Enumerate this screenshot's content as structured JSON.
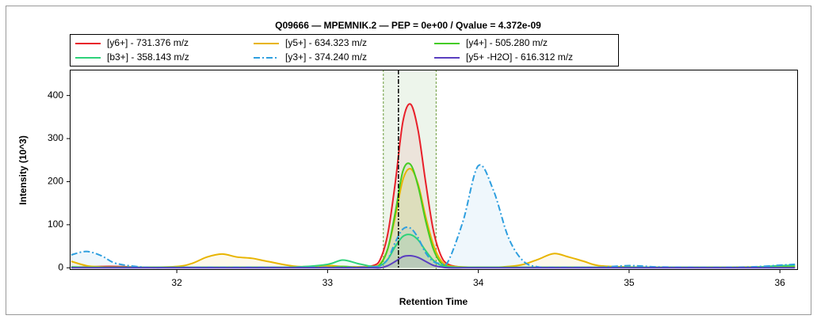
{
  "chart_data": {
    "type": "line",
    "title": "Q09666 — MPEMNIK.2 — PEP = 0e+00 / Qvalue = 4.372e-09",
    "x_label": "Retention Time",
    "y_label": "Intensity (10^3)",
    "x": [
      31.3,
      31.4,
      31.5,
      31.6,
      31.8,
      32.0,
      32.1,
      32.2,
      32.3,
      32.4,
      32.5,
      32.6,
      32.8,
      33.0,
      33.1,
      33.2,
      33.3,
      33.35,
      33.4,
      33.45,
      33.5,
      33.55,
      33.6,
      33.65,
      33.7,
      33.75,
      33.8,
      33.9,
      34.0,
      34.1,
      34.2,
      34.3,
      34.4,
      34.5,
      34.6,
      34.7,
      34.8,
      35.0,
      35.2,
      35.5,
      35.8,
      36.0,
      36.1
    ],
    "series": [
      {
        "name": "[y6+] - 731.376 m/z",
        "color": "#e8202a",
        "style": "solid",
        "values": [
          1,
          2,
          3,
          3,
          1,
          1,
          1,
          1,
          1,
          1,
          1,
          1,
          1,
          1,
          2,
          2,
          5,
          20,
          80,
          200,
          340,
          380,
          320,
          200,
          90,
          30,
          8,
          1,
          1,
          1,
          1,
          1,
          1,
          1,
          1,
          1,
          1,
          1,
          1,
          1,
          1,
          2,
          2
        ]
      },
      {
        "name": "[y5+] - 634.323 m/z",
        "color": "#e8b400",
        "style": "solid",
        "values": [
          15,
          5,
          2,
          1,
          1,
          3,
          10,
          25,
          32,
          25,
          22,
          15,
          3,
          5,
          3,
          2,
          3,
          10,
          45,
          120,
          205,
          230,
          195,
          120,
          55,
          18,
          5,
          2,
          1,
          1,
          3,
          8,
          20,
          33,
          25,
          15,
          5,
          2,
          1,
          1,
          2,
          3,
          4
        ]
      },
      {
        "name": "[y4+] - 505.280 m/z",
        "color": "#44cc22",
        "style": "solid",
        "values": [
          2,
          1,
          1,
          1,
          1,
          1,
          1,
          1,
          1,
          1,
          1,
          1,
          1,
          1,
          3,
          1,
          2,
          8,
          45,
          130,
          225,
          240,
          190,
          110,
          45,
          12,
          3,
          1,
          1,
          1,
          1,
          1,
          1,
          1,
          1,
          1,
          1,
          1,
          1,
          1,
          1,
          1,
          2
        ]
      },
      {
        "name": "[b3+] - 358.143 m/z",
        "color": "#2ed27a",
        "style": "solid",
        "values": [
          1,
          1,
          1,
          1,
          1,
          1,
          1,
          1,
          1,
          1,
          1,
          1,
          2,
          8,
          18,
          10,
          3,
          5,
          20,
          50,
          73,
          77,
          65,
          40,
          18,
          6,
          2,
          1,
          1,
          1,
          1,
          1,
          1,
          1,
          1,
          1,
          1,
          1,
          1,
          1,
          1,
          5,
          6
        ]
      },
      {
        "name": "[y3+] - 374.240 m/z",
        "color": "#2f9fdf",
        "style": "dash-dot",
        "values": [
          30,
          38,
          28,
          10,
          1,
          1,
          1,
          1,
          1,
          1,
          1,
          1,
          1,
          1,
          1,
          1,
          2,
          5,
          20,
          60,
          90,
          92,
          70,
          35,
          15,
          10,
          15,
          110,
          237,
          180,
          70,
          15,
          2,
          1,
          1,
          1,
          1,
          5,
          2,
          1,
          2,
          6,
          8
        ]
      },
      {
        "name": "[y5+ -H2O] - 616.312 m/z",
        "color": "#5a3fc0",
        "style": "solid",
        "values": [
          0,
          0,
          0,
          0,
          0,
          0,
          0,
          0,
          0,
          0,
          0,
          0,
          0,
          0,
          0,
          0,
          0,
          0,
          5,
          15,
          26,
          28,
          24,
          15,
          6,
          2,
          0,
          0,
          0,
          0,
          0,
          0,
          0,
          0,
          0,
          0,
          0,
          0,
          0,
          0,
          0,
          0,
          0
        ]
      }
    ],
    "xlim": [
      31.29,
      36.12
    ],
    "ylim": [
      -5,
      460
    ],
    "xticks": [
      32,
      33,
      34,
      35,
      36
    ],
    "yticks": [
      0,
      100,
      200,
      300,
      400
    ],
    "peak_boundaries": [
      33.37,
      33.72
    ],
    "apex_marker": 33.47,
    "legend": "top"
  }
}
